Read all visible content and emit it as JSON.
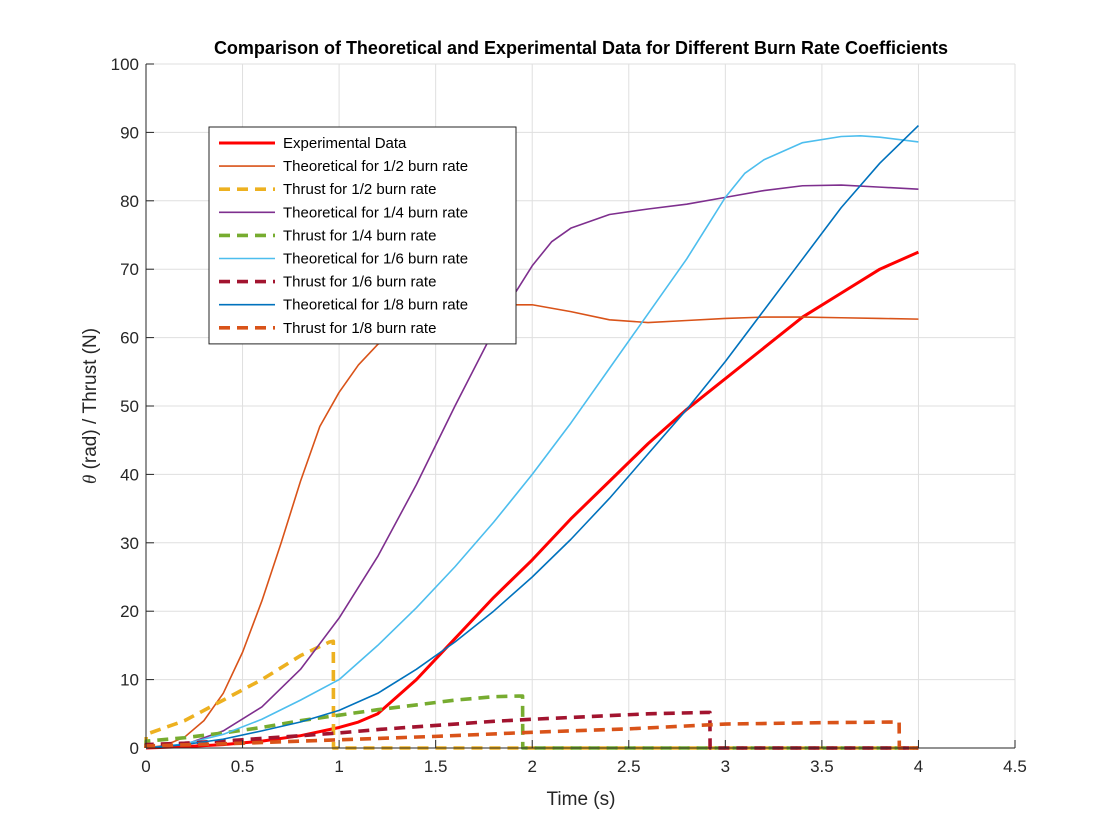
{
  "chart_data": {
    "type": "line",
    "title": "Comparison of Theoretical and Experimental Data for Different Burn Rate Coefficients",
    "xlabel": "Time (s)",
    "ylabel_symbol": "θ",
    "ylabel_rest": " (rad) / Thrust (N)",
    "xlim": [
      0,
      4.5
    ],
    "ylim": [
      0,
      100
    ],
    "xticks": [
      0,
      0.5,
      1,
      1.5,
      2,
      2.5,
      3,
      3.5,
      4,
      4.5
    ],
    "xtick_labels": [
      "0",
      "0.5",
      "1",
      "1.5",
      "2",
      "2.5",
      "3",
      "3.5",
      "4",
      "4.5"
    ],
    "yticks": [
      0,
      10,
      20,
      30,
      40,
      50,
      60,
      70,
      80,
      90,
      100
    ],
    "ytick_labels": [
      "0",
      "10",
      "20",
      "30",
      "40",
      "50",
      "60",
      "70",
      "80",
      "90",
      "100"
    ],
    "grid": true,
    "legend_position": "top-left",
    "series": [
      {
        "name": "Experimental Data",
        "color": "#ff0000",
        "style": "solid",
        "weight": "thick",
        "x": [
          0,
          0.2,
          0.4,
          0.6,
          0.8,
          1.0,
          1.1,
          1.2,
          1.4,
          1.6,
          1.8,
          2.0,
          2.2,
          2.4,
          2.6,
          2.8,
          3.0,
          3.2,
          3.4,
          3.6,
          3.8,
          4.0
        ],
        "y": [
          0,
          0.2,
          0.5,
          1.0,
          1.8,
          3.0,
          3.8,
          5.0,
          10.0,
          16.0,
          22.0,
          27.5,
          33.5,
          39.0,
          44.5,
          49.5,
          54.0,
          58.5,
          63.0,
          66.5,
          70.0,
          72.5
        ]
      },
      {
        "name": "Theoretical for 1/2 burn rate",
        "color": "#d95319",
        "style": "solid",
        "weight": "thin",
        "x": [
          0,
          0.1,
          0.2,
          0.3,
          0.4,
          0.5,
          0.6,
          0.7,
          0.8,
          0.9,
          1.0,
          1.1,
          1.2,
          1.3,
          1.4,
          1.6,
          1.8,
          2.0,
          2.2,
          2.4,
          2.6,
          2.8,
          3.0,
          3.2,
          3.4,
          3.6,
          3.8,
          4.0
        ],
        "y": [
          0,
          0.4,
          1.6,
          4.0,
          8.0,
          14.0,
          21.5,
          30.0,
          39.0,
          47.0,
          52.0,
          56.0,
          59.0,
          61.0,
          62.5,
          64.0,
          64.8,
          64.8,
          63.8,
          62.6,
          62.2,
          62.5,
          62.8,
          63.0,
          63.0,
          62.9,
          62.8,
          62.7
        ]
      },
      {
        "name": "Thrust for 1/2 burn rate",
        "color": "#edb120",
        "style": "dashed",
        "weight": "thick",
        "x": [
          0,
          0.001,
          0.2,
          0.4,
          0.6,
          0.8,
          0.95,
          0.97,
          0.971,
          1.0,
          4.0
        ],
        "y": [
          0,
          2.0,
          4.0,
          7.0,
          10.0,
          13.5,
          15.5,
          15.6,
          0,
          0,
          0
        ]
      },
      {
        "name": "Theoretical for 1/4 burn rate",
        "color": "#7e2f8e",
        "style": "solid",
        "weight": "thin",
        "x": [
          0,
          0.2,
          0.4,
          0.6,
          0.8,
          1.0,
          1.2,
          1.4,
          1.6,
          1.8,
          1.9,
          2.0,
          2.1,
          2.2,
          2.4,
          2.6,
          2.8,
          3.0,
          3.2,
          3.4,
          3.6,
          3.8,
          4.0
        ],
        "y": [
          0,
          0.5,
          2.5,
          6.0,
          11.5,
          19.0,
          28.0,
          38.5,
          50.0,
          61.0,
          66.0,
          70.5,
          74.0,
          76.0,
          78.0,
          78.8,
          79.5,
          80.5,
          81.5,
          82.2,
          82.3,
          82.0,
          81.7
        ]
      },
      {
        "name": "Thrust for 1/4 burn rate",
        "color": "#77ac30",
        "style": "dashed",
        "weight": "thick",
        "x": [
          0,
          0.001,
          0.2,
          0.4,
          0.6,
          0.8,
          1.0,
          1.2,
          1.4,
          1.6,
          1.8,
          1.93,
          1.95,
          1.951,
          2.0,
          4.0
        ],
        "y": [
          0,
          1.0,
          1.5,
          2.2,
          3.0,
          4.0,
          4.8,
          5.6,
          6.3,
          7.0,
          7.5,
          7.6,
          7.6,
          0,
          0,
          0
        ]
      },
      {
        "name": "Theoretical for 1/6 burn rate",
        "color": "#4dbeee",
        "style": "solid",
        "weight": "thin",
        "x": [
          0,
          0.2,
          0.4,
          0.6,
          0.8,
          1.0,
          1.2,
          1.4,
          1.6,
          1.8,
          2.0,
          2.2,
          2.4,
          2.6,
          2.8,
          2.9,
          3.0,
          3.1,
          3.2,
          3.4,
          3.6,
          3.7,
          3.8,
          4.0
        ],
        "y": [
          0,
          0.6,
          2.0,
          4.2,
          7.0,
          10.0,
          15.0,
          20.5,
          26.5,
          33.0,
          40.0,
          47.5,
          55.5,
          63.5,
          71.5,
          76.0,
          80.5,
          84.0,
          86.0,
          88.5,
          89.4,
          89.5,
          89.3,
          88.6
        ]
      },
      {
        "name": "Thrust for 1/6 burn rate",
        "color": "#a2142f",
        "style": "dashed",
        "weight": "thick",
        "x": [
          0,
          0.001,
          0.2,
          0.5,
          0.8,
          1.0,
          1.2,
          1.5,
          1.8,
          2.0,
          2.3,
          2.6,
          2.9,
          2.92,
          2.921,
          3.0,
          4.0
        ],
        "y": [
          0,
          0.5,
          0.7,
          1.2,
          1.8,
          2.2,
          2.7,
          3.3,
          3.9,
          4.2,
          4.6,
          5.0,
          5.2,
          5.2,
          0,
          0,
          0
        ]
      },
      {
        "name": "Theoretical for 1/8 burn rate",
        "color": "#0072bd",
        "style": "solid",
        "weight": "thin",
        "x": [
          0,
          0.2,
          0.4,
          0.6,
          0.8,
          1.0,
          1.2,
          1.4,
          1.6,
          1.8,
          2.0,
          2.2,
          2.4,
          2.6,
          2.8,
          3.0,
          3.2,
          3.4,
          3.6,
          3.8,
          4.0
        ],
        "y": [
          0,
          0.5,
          1.3,
          2.5,
          3.8,
          5.5,
          8.0,
          11.5,
          15.5,
          20.0,
          25.0,
          30.5,
          36.5,
          43.0,
          49.5,
          56.5,
          64.0,
          71.5,
          79.0,
          85.5,
          91.0
        ]
      },
      {
        "name": "Thrust for 1/8 burn rate",
        "color": "#d95319",
        "style": "dashed",
        "weight": "thick",
        "x": [
          0,
          0.001,
          0.5,
          1.0,
          1.5,
          2.0,
          2.5,
          3.0,
          3.5,
          3.88,
          3.9,
          3.901,
          4.0
        ],
        "y": [
          0,
          0.3,
          0.7,
          1.2,
          1.7,
          2.3,
          2.8,
          3.5,
          3.7,
          3.8,
          3.8,
          0,
          0
        ]
      }
    ]
  }
}
